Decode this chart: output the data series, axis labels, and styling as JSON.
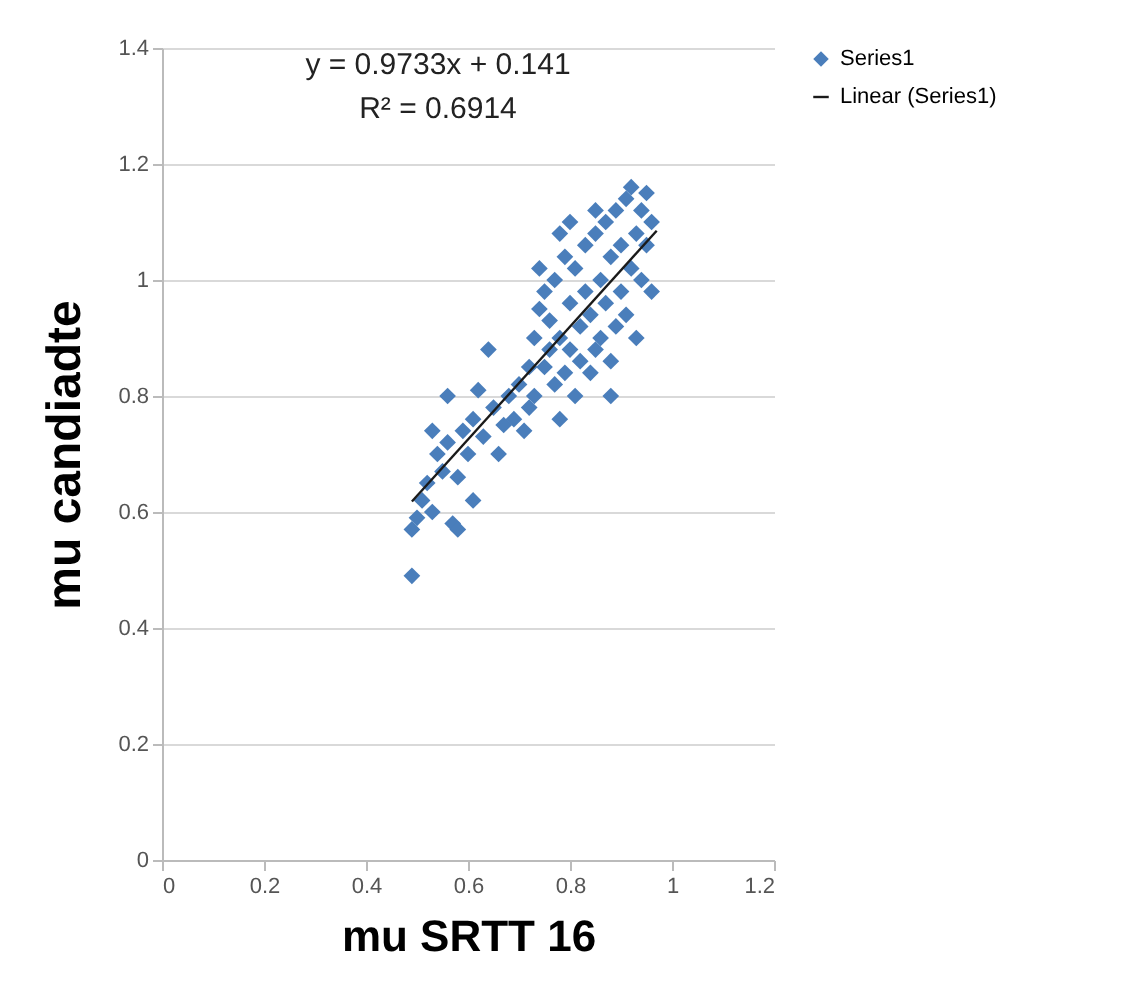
{
  "chart_data": {
    "type": "scatter",
    "xlabel": "mu SRTT 16",
    "ylabel": "mu candiadte",
    "annotations": [
      "y = 0.9733x + 0.141",
      "R² = 0.6914"
    ],
    "xlim": [
      0,
      1.2
    ],
    "xticks": [
      0,
      0.2,
      0.4,
      0.6,
      0.8,
      1,
      1.2
    ],
    "ylim": [
      0,
      1.4
    ],
    "yticks": [
      0,
      0.2,
      0.4,
      0.6,
      0.8,
      1,
      1.2,
      1.4
    ],
    "grid": "y",
    "legend": "right",
    "series": [
      {
        "name": "Series1",
        "color": "#4a7ebb",
        "marker": "diamond",
        "x": [
          0.49,
          0.49,
          0.5,
          0.51,
          0.52,
          0.53,
          0.53,
          0.54,
          0.55,
          0.56,
          0.56,
          0.57,
          0.58,
          0.58,
          0.59,
          0.6,
          0.61,
          0.61,
          0.62,
          0.63,
          0.64,
          0.65,
          0.66,
          0.67,
          0.68,
          0.69,
          0.7,
          0.71,
          0.72,
          0.72,
          0.73,
          0.73,
          0.74,
          0.74,
          0.75,
          0.75,
          0.76,
          0.76,
          0.77,
          0.77,
          0.78,
          0.78,
          0.79,
          0.79,
          0.8,
          0.8,
          0.81,
          0.81,
          0.82,
          0.82,
          0.83,
          0.83,
          0.84,
          0.84,
          0.85,
          0.85,
          0.86,
          0.86,
          0.87,
          0.87,
          0.88,
          0.88,
          0.89,
          0.89,
          0.9,
          0.9,
          0.91,
          0.91,
          0.92,
          0.92,
          0.93,
          0.93,
          0.94,
          0.94,
          0.95,
          0.95,
          0.96,
          0.96,
          0.8,
          0.85,
          0.78,
          0.88
        ],
        "values": [
          0.49,
          0.57,
          0.59,
          0.62,
          0.65,
          0.6,
          0.74,
          0.7,
          0.67,
          0.72,
          0.8,
          0.58,
          0.57,
          0.66,
          0.74,
          0.7,
          0.62,
          0.76,
          0.81,
          0.73,
          0.88,
          0.78,
          0.7,
          0.75,
          0.8,
          0.76,
          0.82,
          0.74,
          0.78,
          0.85,
          0.8,
          0.9,
          0.95,
          1.02,
          0.85,
          0.98,
          0.88,
          0.93,
          0.82,
          1.0,
          0.76,
          0.9,
          0.84,
          1.04,
          0.88,
          0.96,
          0.8,
          1.02,
          0.86,
          0.92,
          0.98,
          1.06,
          0.84,
          0.94,
          0.88,
          1.08,
          0.9,
          1.0,
          0.96,
          1.1,
          0.86,
          1.04,
          0.92,
          1.12,
          0.98,
          1.06,
          1.14,
          0.94,
          1.02,
          1.16,
          1.08,
          0.9,
          1.12,
          1.0,
          1.06,
          1.15,
          1.1,
          0.98,
          1.1,
          1.12,
          1.08,
          0.8
        ]
      },
      {
        "name": "Linear (Series1)",
        "color": "#1a1a1a",
        "type": "line",
        "x": [
          0.49,
          0.97
        ],
        "values": [
          0.618,
          1.085
        ]
      }
    ]
  }
}
